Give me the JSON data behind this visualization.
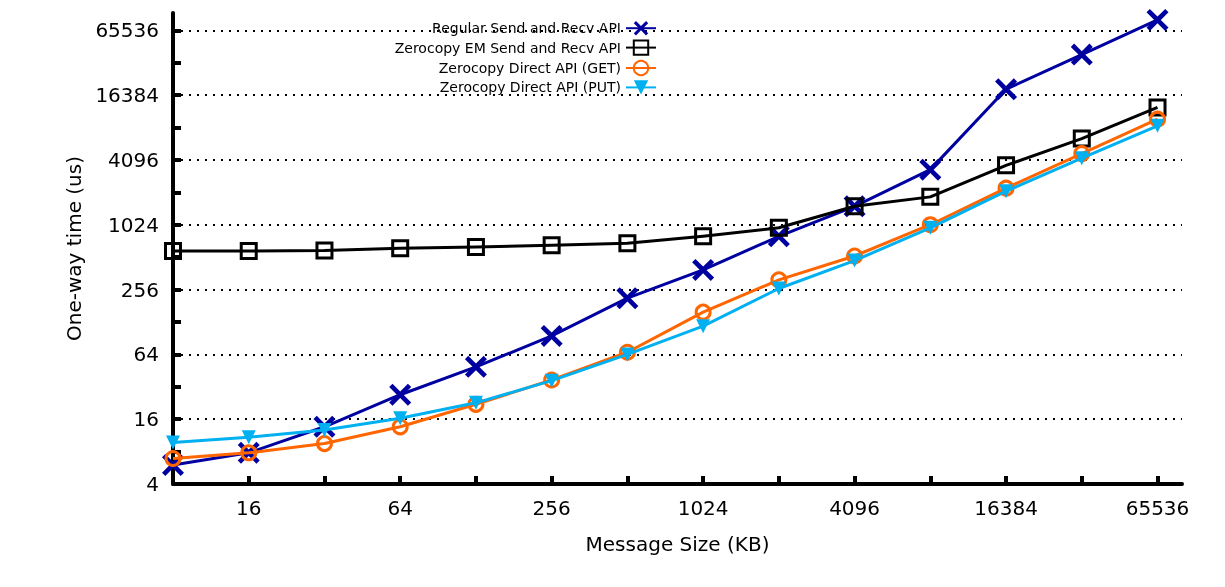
{
  "chart_data": {
    "type": "line",
    "xlabel": "Message Size (KB)",
    "ylabel": "One-way time (us)",
    "log": "xy",
    "grid": "y",
    "legend": "top",
    "line_style": "solid",
    "x": [
      8,
      16,
      32,
      64,
      128,
      256,
      512,
      1024,
      2048,
      4096,
      8192,
      16384,
      32768,
      65536
    ],
    "xlim": [
      8,
      82000
    ],
    "ylim": [
      4,
      95000
    ],
    "xticks": [
      {
        "value": 16,
        "label": "16"
      },
      {
        "value": 32,
        "label": null
      },
      {
        "value": 64,
        "label": "64"
      },
      {
        "value": 128,
        "label": null
      },
      {
        "value": 256,
        "label": "256"
      },
      {
        "value": 512,
        "label": null
      },
      {
        "value": 1024,
        "label": "1024"
      },
      {
        "value": 2048,
        "label": null
      },
      {
        "value": 4096,
        "label": "4096"
      },
      {
        "value": 8192,
        "label": null
      },
      {
        "value": 16384,
        "label": "16384"
      },
      {
        "value": 32768,
        "label": null
      },
      {
        "value": 65536,
        "label": "65536"
      }
    ],
    "yticks": [
      {
        "value": 4,
        "label": "4"
      },
      {
        "value": 8,
        "label": null
      },
      {
        "value": 16,
        "label": "16"
      },
      {
        "value": 32,
        "label": null
      },
      {
        "value": 64,
        "label": "64"
      },
      {
        "value": 128,
        "label": null
      },
      {
        "value": 256,
        "label": "256"
      },
      {
        "value": 512,
        "label": null
      },
      {
        "value": 1024,
        "label": "1024"
      },
      {
        "value": 2048,
        "label": null
      },
      {
        "value": 4096,
        "label": "4096"
      },
      {
        "value": 8192,
        "label": null
      },
      {
        "value": 16384,
        "label": "16384"
      },
      {
        "value": 32768,
        "label": null
      },
      {
        "value": 65536,
        "label": "65536"
      }
    ],
    "series": [
      {
        "name": "Regular Send and Recv API",
        "color": "#0000a0",
        "marker": "cross",
        "values": [
          6,
          7.8,
          13.6,
          27,
          49,
          95,
          213,
          390,
          800,
          1520,
          3330,
          18600,
          39000,
          82000
        ]
      },
      {
        "name": "Zerocopy EM Send and Recv API",
        "color": "#000000",
        "marker": "square",
        "values": [
          585,
          585,
          590,
          620,
          635,
          660,
          690,
          800,
          960,
          1520,
          1860,
          3650,
          6470,
          12600
        ]
      },
      {
        "name": "Zerocopy Direct API (GET)",
        "color": "#ff6600",
        "marker": "circle",
        "values": [
          6.9,
          7.8,
          9.5,
          13.6,
          22,
          37,
          67,
          158,
          315,
          525,
          1025,
          2240,
          4700,
          9800
        ]
      },
      {
        "name": "Zerocopy Direct API (PUT)",
        "color": "#00b0f0",
        "marker": "triangle",
        "values": [
          9.7,
          10.9,
          12.7,
          16.3,
          22.7,
          36.5,
          64,
          117,
          262,
          476,
          960,
          2100,
          4250,
          8500
        ]
      }
    ]
  }
}
